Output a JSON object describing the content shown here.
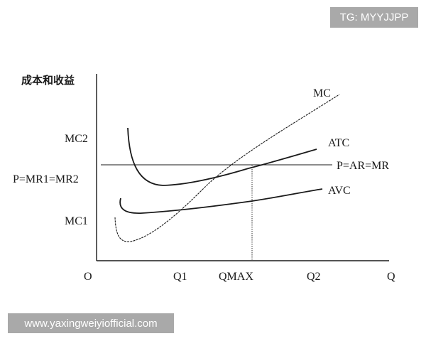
{
  "diagram": {
    "y_axis_label": "成本和收益",
    "origin_label": "O",
    "x_axis_label": "Q",
    "y_ticks": {
      "mc2": "MC2",
      "price": "P=MR1=MR2",
      "mc1": "MC1"
    },
    "x_ticks": {
      "q1": "Q1",
      "qmax": "QMAX",
      "q2": "Q2"
    },
    "curves": {
      "mc": "MC",
      "atc": "ATC",
      "avc": "AVC",
      "price_line": "P=AR=MR"
    }
  },
  "watermarks": {
    "top": "TG: MYYJJPP",
    "bottom": "www.yaxingweiyiofficial.com"
  },
  "colors": {
    "ink": "#1a1a1a",
    "watermark_bg": "#969696"
  }
}
